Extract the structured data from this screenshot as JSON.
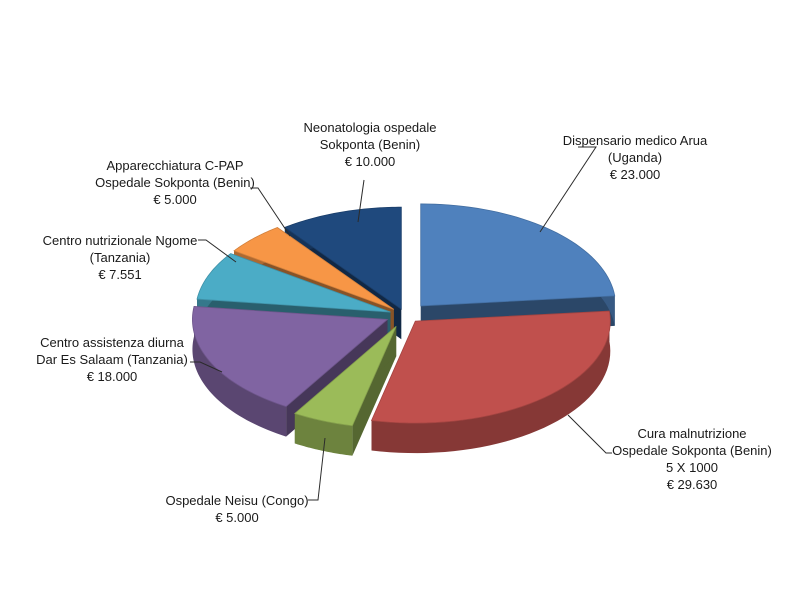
{
  "chart_data": {
    "type": "pie",
    "style": "3d-exploded",
    "currency": "€",
    "slices": [
      {
        "lines": [
          "Dispensario medico Arua",
          "(Uganda)",
          "€ 23.000"
        ],
        "value": 23000,
        "color": "#4F81BD"
      },
      {
        "lines": [
          "Cura malnutrizione",
          "Ospedale Sokponta (Benin)",
          "5 X 1000",
          "€ 29.630"
        ],
        "value": 29630,
        "color": "#C0504D"
      },
      {
        "lines": [
          "Ospedale Neisu (Congo)",
          "€ 5.000"
        ],
        "value": 5000,
        "color": "#9BBB59"
      },
      {
        "lines": [
          "Centro assistenza diurna",
          "Dar Es Salaam (Tanzania)",
          "€ 18.000"
        ],
        "value": 18000,
        "color": "#8064A2"
      },
      {
        "lines": [
          "Centro nutrizionale Ngome",
          "(Tanzania)",
          "€ 7.551"
        ],
        "value": 7551,
        "color": "#4BACC6"
      },
      {
        "lines": [
          "Apparecchiatura C-PAP",
          "Ospedale Sokponta (Benin)",
          "€ 5.000"
        ],
        "value": 5000,
        "color": "#F79646"
      },
      {
        "lines": [
          "Neonatologia ospedale",
          "Sokponta (Benin)",
          "€ 10.000"
        ],
        "value": 10000,
        "color": "#1F497D"
      }
    ]
  }
}
